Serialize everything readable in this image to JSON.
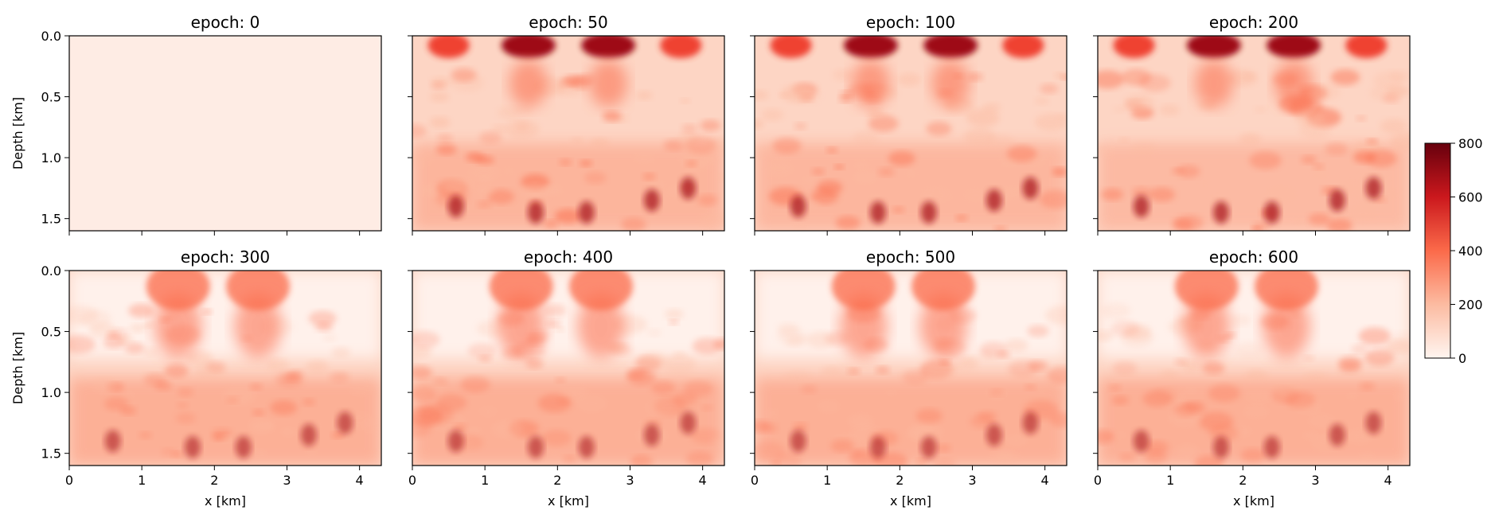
{
  "chart_data": {
    "type": "heatmap",
    "colormap": "Reds",
    "panels": [
      {
        "title": "epoch: 0",
        "epoch": 0
      },
      {
        "title": "epoch: 50",
        "epoch": 50
      },
      {
        "title": "epoch: 100",
        "epoch": 100
      },
      {
        "title": "epoch: 200",
        "epoch": 200
      },
      {
        "title": "epoch: 300",
        "epoch": 300
      },
      {
        "title": "epoch: 400",
        "epoch": 400
      },
      {
        "title": "epoch: 500",
        "epoch": 500
      },
      {
        "title": "epoch: 600",
        "epoch": 600
      }
    ],
    "xlabel": "x [km]",
    "ylabel": "Depth [km]",
    "xlim": [
      0,
      4.3
    ],
    "ylim": [
      1.6,
      0.0
    ],
    "xticks": [
      "0",
      "1",
      "2",
      "3",
      "4"
    ],
    "yticks": [
      "0.0",
      "0.5",
      "1.0",
      "1.5"
    ],
    "colorbar": {
      "min": 0,
      "max": 800,
      "ticks": [
        "0",
        "200",
        "400",
        "600",
        "800"
      ],
      "colors": [
        "#fff5f0",
        "#fcbba1",
        "#fb6a4a",
        "#cb181d",
        "#67000d"
      ]
    }
  }
}
